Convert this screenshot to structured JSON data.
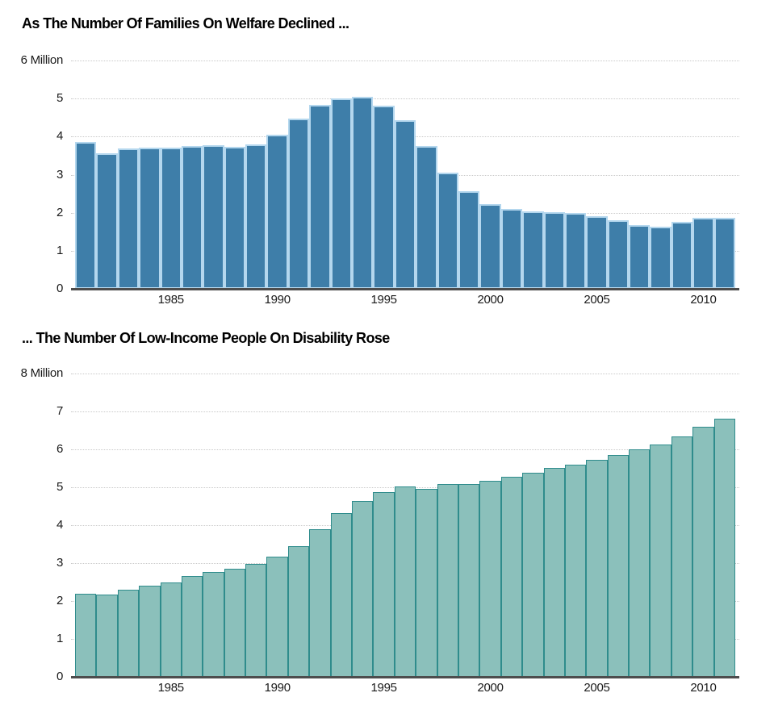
{
  "chart_data": [
    {
      "type": "bar",
      "title": "As The Number Of Families On Welfare Declined ...",
      "units": "Million",
      "x": [
        1981,
        1982,
        1983,
        1984,
        1985,
        1986,
        1987,
        1988,
        1989,
        1990,
        1991,
        1992,
        1993,
        1994,
        1995,
        1996,
        1997,
        1998,
        1999,
        2000,
        2001,
        2002,
        2003,
        2004,
        2005,
        2006,
        2007,
        2008,
        2009,
        2010,
        2011
      ],
      "values": [
        3.86,
        3.57,
        3.69,
        3.72,
        3.71,
        3.76,
        3.78,
        3.74,
        3.8,
        4.06,
        4.47,
        4.83,
        5.01,
        5.04,
        4.81,
        4.44,
        3.76,
        3.06,
        2.57,
        2.23,
        2.09,
        2.04,
        2.02,
        1.99,
        1.9,
        1.8,
        1.67,
        1.64,
        1.76,
        1.86,
        1.86
      ],
      "ylim": [
        0,
        6
      ],
      "y_tick_interval": 1,
      "y_top_tick_label": "6 Million",
      "x_tick_labels": [
        "1985",
        "1990",
        "1995",
        "2000",
        "2005",
        "2010"
      ],
      "grid": "horizontal-dotted",
      "legend": "none",
      "bar_fill": "#3e7ea9",
      "bar_border": "#b4d7ee",
      "bar_border_width": 2
    },
    {
      "type": "bar",
      "title": "... The Number Of Low-Income People On Disability Rose",
      "units": "Million",
      "x": [
        1981,
        1982,
        1983,
        1984,
        1985,
        1986,
        1987,
        1988,
        1989,
        1990,
        1991,
        1992,
        1993,
        1994,
        1995,
        1996,
        1997,
        1998,
        1999,
        2000,
        2001,
        2002,
        2003,
        2004,
        2005,
        2006,
        2007,
        2008,
        2009,
        2010,
        2011
      ],
      "values": [
        2.2,
        2.18,
        2.3,
        2.4,
        2.5,
        2.65,
        2.77,
        2.86,
        2.97,
        3.16,
        3.45,
        3.9,
        4.31,
        4.64,
        4.88,
        5.03,
        4.96,
        5.09,
        5.08,
        5.16,
        5.28,
        5.38,
        5.51,
        5.6,
        5.72,
        5.85,
        6.0,
        6.13,
        6.34,
        6.59,
        6.8
      ],
      "ylim": [
        0,
        8
      ],
      "y_tick_interval": 1,
      "y_top_tick_label": "8 Million",
      "x_tick_labels": [
        "1985",
        "1990",
        "1995",
        "2000",
        "2005",
        "2010"
      ],
      "grid": "horizontal-dotted",
      "legend": "none",
      "bar_fill": "#8bc0bb",
      "bar_border": "#2f8c8c",
      "bar_border_width": 1.5
    }
  ],
  "colors": {
    "axis_line": "#4d4d4d",
    "gridline": "#c9c9c9",
    "label_text": "#1a1a1a",
    "title_text": "#000000",
    "background": "#ffffff"
  }
}
